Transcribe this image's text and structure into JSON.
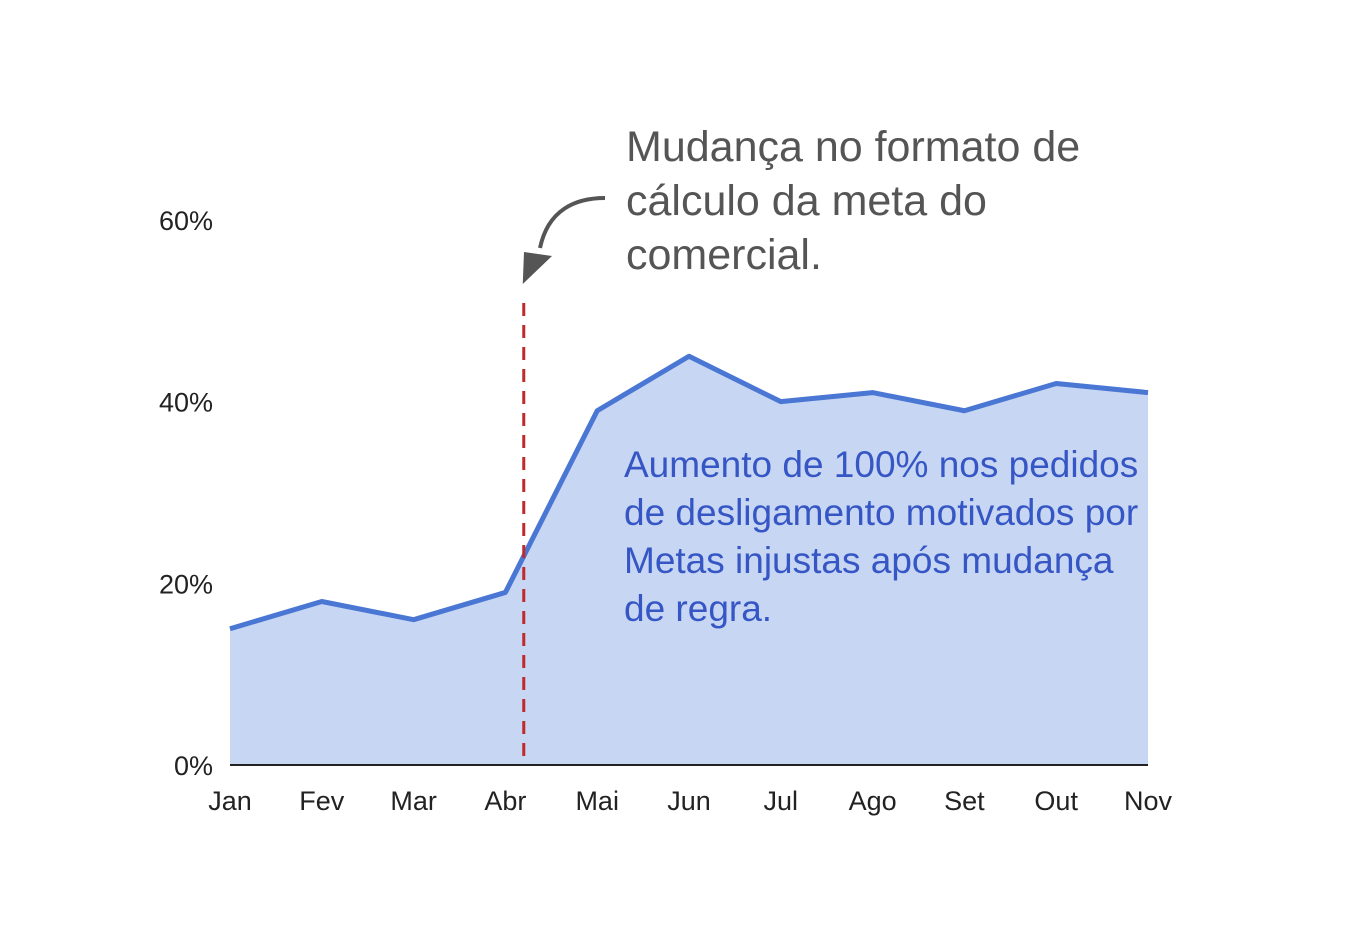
{
  "chart_data": {
    "type": "area",
    "categories": [
      "Jan",
      "Fev",
      "Mar",
      "Abr",
      "Mai",
      "Jun",
      "Jul",
      "Ago",
      "Set",
      "Out",
      "Nov"
    ],
    "series": [
      {
        "values": [
          15,
          18,
          16,
          19,
          39,
          45,
          40,
          41,
          39,
          42,
          41
        ]
      }
    ],
    "y_ticks": [
      "0%",
      "20%",
      "40%",
      "60%"
    ],
    "ylim": [
      0,
      60
    ],
    "grid": false,
    "colors": {
      "line": "#4a76d4",
      "fill": "#c7d6f2",
      "marker_line": "#c02a2a",
      "axis": "#222222",
      "arrow": "#555555"
    },
    "marker": {
      "position_between": [
        "Abr",
        "Mai"
      ],
      "x_value": 3.2
    },
    "annotations": {
      "top": "Mudança no formato de cálculo da meta do comercial.",
      "inside": "Aumento de 100% nos pedidos de desligamento motivados por Metas injustas após mudança de regra."
    }
  }
}
